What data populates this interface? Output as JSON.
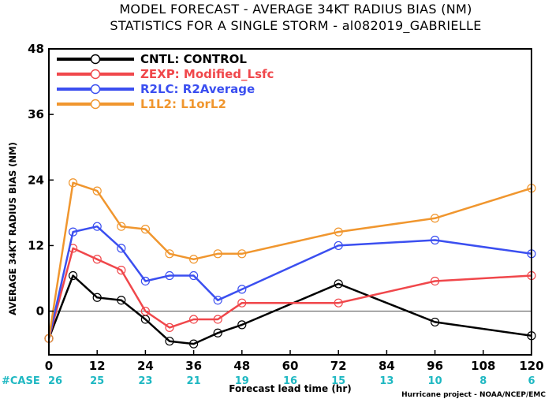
{
  "chart_data": {
    "type": "line",
    "title_line1": "MODEL FORECAST - AVERAGE 34KT RADIUS BIAS (NM)",
    "title_line2": "STATISTICS FOR A SINGLE STORM - al082019_GABRIELLE",
    "xlabel": "Forecast lead time (hr)",
    "ylabel": "AVERAGE 34KT RADIUS BIAS (NM)",
    "credit": "Hurricane project - NOAA/NCEP/EMC",
    "xlim": [
      0,
      120
    ],
    "ylim": [
      -8,
      48
    ],
    "x_ticks": [
      0,
      12,
      24,
      36,
      48,
      60,
      72,
      84,
      96,
      108,
      120
    ],
    "y_ticks": [
      0,
      12,
      24,
      36,
      48
    ],
    "grid": false,
    "zero_line": true,
    "legend_position": "top-left",
    "case_label": "#CASE",
    "case_x": [
      0,
      12,
      24,
      36,
      48,
      60,
      72,
      84,
      96,
      108,
      120
    ],
    "case_counts": [
      "26",
      "25",
      "23",
      "21",
      "19",
      "16",
      "15",
      "13",
      "10",
      "8",
      "6"
    ],
    "series": [
      {
        "name": "CNTL: CONTROL",
        "color": "#000000",
        "x": [
          0,
          6,
          12,
          18,
          24,
          30,
          36,
          42,
          48,
          72,
          96,
          120
        ],
        "y": [
          -5,
          6.5,
          2.5,
          2,
          -1.5,
          -5.5,
          -6,
          -4,
          -2.5,
          5,
          -2,
          -4.5
        ]
      },
      {
        "name": "ZEXP: Modified_Lsfc",
        "color": "#f0474b",
        "x": [
          0,
          6,
          12,
          18,
          24,
          30,
          36,
          42,
          48,
          72,
          96,
          120
        ],
        "y": [
          -5,
          11.5,
          9.5,
          7.5,
          0,
          -3,
          -1.5,
          -1.5,
          1.5,
          1.5,
          5.5,
          6.5
        ]
      },
      {
        "name": "R2LC: R2Average",
        "color": "#3b4ff0",
        "x": [
          0,
          6,
          12,
          18,
          24,
          30,
          36,
          42,
          48,
          72,
          96,
          120
        ],
        "y": [
          -5,
          14.5,
          15.5,
          11.5,
          5.5,
          6.5,
          6.5,
          2,
          4,
          12,
          13,
          10.5
        ]
      },
      {
        "name": "L1L2: L1orL2",
        "color": "#f0962e",
        "x": [
          0,
          6,
          12,
          18,
          24,
          30,
          36,
          42,
          48,
          72,
          96,
          120
        ],
        "y": [
          -5,
          23.5,
          22,
          15.5,
          15,
          10.5,
          9.5,
          10.5,
          10.5,
          14.5,
          17,
          22.5
        ]
      }
    ]
  }
}
